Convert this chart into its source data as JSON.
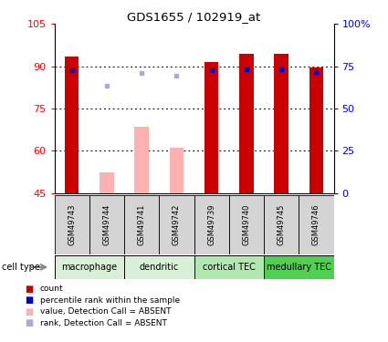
{
  "title": "GDS1655 / 102919_at",
  "samples": [
    "GSM49743",
    "GSM49744",
    "GSM49741",
    "GSM49742",
    "GSM49739",
    "GSM49740",
    "GSM49745",
    "GSM49746"
  ],
  "cell_types": [
    {
      "label": "macrophage",
      "start": 0,
      "end": 2,
      "color": "#d8f0d8"
    },
    {
      "label": "dendritic",
      "start": 2,
      "end": 4,
      "color": "#d8f0d8"
    },
    {
      "label": "cortical TEC",
      "start": 4,
      "end": 6,
      "color": "#b0e8b0"
    },
    {
      "label": "medullary TEC",
      "start": 6,
      "end": 8,
      "color": "#50d050"
    }
  ],
  "count_values": [
    93.5,
    null,
    null,
    null,
    91.5,
    94.5,
    94.5,
    89.5
  ],
  "count_absent": [
    null,
    52.5,
    68.5,
    61.0,
    null,
    null,
    null,
    null
  ],
  "rank_present": [
    88.5,
    null,
    null,
    null,
    88.5,
    89.0,
    89.0,
    88.0
  ],
  "rank_absent": [
    null,
    83.0,
    87.5,
    86.5,
    null,
    null,
    null,
    null
  ],
  "ylim": [
    45,
    105
  ],
  "yticks": [
    45,
    60,
    75,
    90,
    105
  ],
  "right_yticks_pct": [
    0,
    25,
    50,
    75,
    100
  ],
  "right_yticklabels": [
    "0",
    "25",
    "50",
    "75",
    "100%"
  ],
  "bar_width": 0.4,
  "count_color": "#cc0000",
  "count_absent_color": "#ffb0b0",
  "rank_color": "#0000cc",
  "rank_absent_color": "#aaaadd",
  "grid_color": "#000000",
  "sample_box_color": "#d4d4d4"
}
